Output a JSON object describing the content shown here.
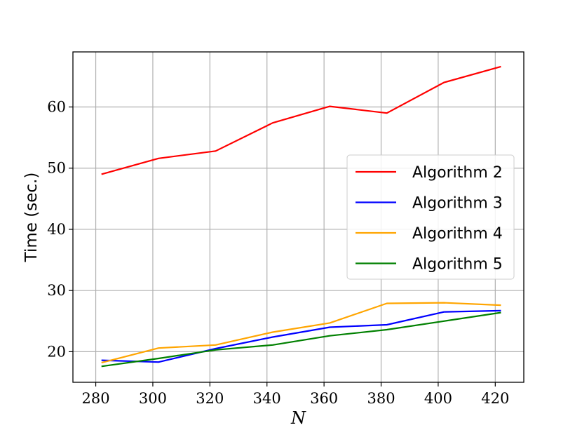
{
  "chart_data": {
    "type": "line",
    "xlabel": "N",
    "ylabel": "Time (sec.)",
    "xlim": [
      272,
      430
    ],
    "ylim": [
      15,
      69
    ],
    "xticks": [
      280,
      300,
      320,
      340,
      360,
      380,
      400,
      420
    ],
    "yticks": [
      20,
      30,
      40,
      50,
      60
    ],
    "grid": true,
    "legend_position": "center-right",
    "x": [
      282,
      302,
      322,
      342,
      362,
      382,
      402,
      422
    ],
    "series": [
      {
        "name": "Algorithm 2",
        "color": "#ff0000",
        "values": [
          49.0,
          51.6,
          52.8,
          57.4,
          60.1,
          59.0,
          64.0,
          66.6
        ]
      },
      {
        "name": "Algorithm 3",
        "color": "#0000ff",
        "values": [
          18.6,
          18.3,
          20.5,
          22.4,
          24.0,
          24.4,
          26.5,
          26.7
        ]
      },
      {
        "name": "Algorithm 4",
        "color": "#ffa500",
        "values": [
          18.2,
          20.6,
          21.1,
          23.2,
          24.7,
          27.9,
          28.0,
          27.6
        ]
      },
      {
        "name": "Algorithm 5",
        "color": "#008000",
        "values": [
          17.6,
          18.9,
          20.3,
          21.1,
          22.6,
          23.6,
          25.0,
          26.4
        ]
      }
    ]
  }
}
